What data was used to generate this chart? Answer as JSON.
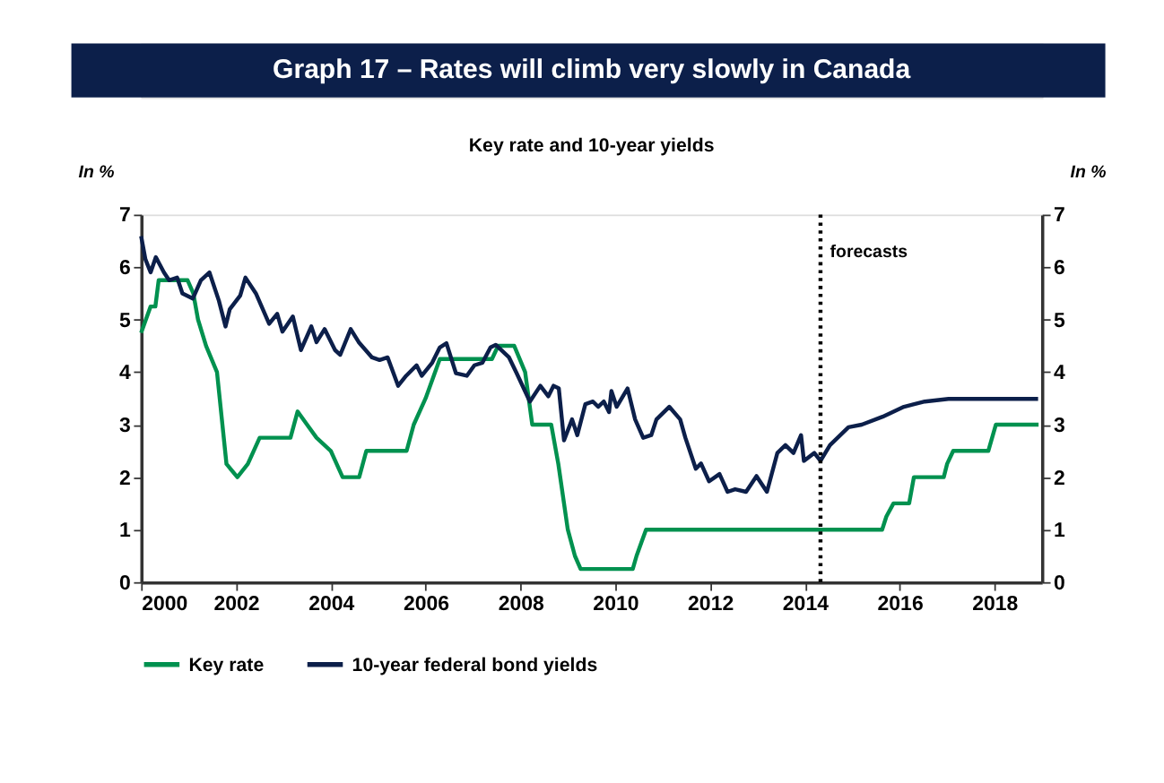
{
  "chart_data": {
    "type": "line",
    "title": "Graph 17 – Rates will climb very slowly in Canada",
    "subtitle": "Key rate and 10-year yields",
    "ylabel": "In %",
    "y2label": "In %",
    "xlim": [
      2000,
      2019
    ],
    "xticks": [
      2000,
      2002,
      2004,
      2006,
      2008,
      2010,
      2012,
      2014,
      2016,
      2018
    ],
    "ylim": [
      0,
      7
    ],
    "yticks": [
      0,
      1,
      2,
      3,
      4,
      5,
      6,
      7
    ],
    "y2lim": [
      0,
      7
    ],
    "y2ticks": [
      0,
      1,
      2,
      3,
      4,
      5,
      6,
      7
    ],
    "grid": false,
    "legend": "bottom",
    "line_style": "solid",
    "ref_lines": [
      {
        "axis": "x",
        "value": 2014.33,
        "label": "forecasts",
        "line_style": "dotted",
        "color": "#000000"
      }
    ],
    "series": [
      {
        "name": "Key rate",
        "color": "#00914f",
        "x": [
          2000.0,
          2000.2,
          2000.3,
          2000.37,
          2000.98,
          2001.1,
          2001.2,
          2001.37,
          2001.6,
          2001.8,
          2002.03,
          2002.25,
          2002.5,
          2003.15,
          2003.3,
          2003.5,
          2003.7,
          2004.0,
          2004.25,
          2004.6,
          2004.75,
          2005.6,
          2005.75,
          2006.0,
          2006.3,
          2007.4,
          2007.53,
          2007.87,
          2008.1,
          2008.25,
          2008.65,
          2008.8,
          2009.0,
          2009.15,
          2009.27,
          2010.37,
          2010.45,
          2010.55,
          2010.65,
          2015.63,
          2015.72,
          2015.87,
          2016.2,
          2016.3,
          2016.93,
          2017.0,
          2017.13,
          2017.87,
          2018.03,
          2018.93
        ],
        "values": [
          4.75,
          5.25,
          5.25,
          5.75,
          5.75,
          5.5,
          5.0,
          4.5,
          4.0,
          2.25,
          2.0,
          2.25,
          2.75,
          2.75,
          3.25,
          3.0,
          2.75,
          2.5,
          2.0,
          2.0,
          2.5,
          2.5,
          3.0,
          3.5,
          4.25,
          4.25,
          4.5,
          4.5,
          4.0,
          3.0,
          3.0,
          2.25,
          1.0,
          0.5,
          0.25,
          0.25,
          0.5,
          0.75,
          1.0,
          1.0,
          1.25,
          1.5,
          1.5,
          2.0,
          2.0,
          2.25,
          2.5,
          2.5,
          3.0,
          3.0
        ]
      },
      {
        "name": "10-year federal bond yields",
        "color": "#0c1f4a",
        "x": [
          2000.0,
          2000.09,
          2000.2,
          2000.31,
          2000.48,
          2000.59,
          2000.76,
          2000.87,
          2001.09,
          2001.26,
          2001.44,
          2001.64,
          2001.78,
          2001.87,
          2002.09,
          2002.2,
          2002.42,
          2002.7,
          2002.87,
          2002.98,
          2003.2,
          2003.37,
          2003.59,
          2003.7,
          2003.87,
          2004.09,
          2004.2,
          2004.42,
          2004.59,
          2004.87,
          2005.03,
          2005.2,
          2005.42,
          2005.59,
          2005.81,
          2005.92,
          2006.14,
          2006.3,
          2006.44,
          2006.64,
          2006.87,
          2007.03,
          2007.2,
          2007.37,
          2007.48,
          2007.76,
          2007.92,
          2008.2,
          2008.42,
          2008.59,
          2008.7,
          2008.81,
          2008.92,
          2009.09,
          2009.2,
          2009.37,
          2009.53,
          2009.64,
          2009.76,
          2009.87,
          2009.92,
          2010.03,
          2010.26,
          2010.42,
          2010.59,
          2010.76,
          2010.87,
          2011.14,
          2011.37,
          2011.48,
          2011.7,
          2011.81,
          2011.98,
          2012.2,
          2012.37,
          2012.53,
          2012.76,
          2012.98,
          2013.2,
          2013.42,
          2013.59,
          2013.76,
          2013.92,
          2013.98,
          2014.2,
          2014.33,
          2014.53,
          2014.92,
          2015.2,
          2015.64,
          2016.09,
          2016.53,
          2017.03,
          2018.92
        ],
        "values": [
          6.59,
          6.15,
          5.9,
          6.19,
          5.9,
          5.75,
          5.8,
          5.5,
          5.4,
          5.75,
          5.9,
          5.36,
          4.87,
          5.2,
          5.46,
          5.8,
          5.5,
          4.92,
          5.11,
          4.77,
          5.06,
          4.42,
          4.87,
          4.57,
          4.82,
          4.42,
          4.33,
          4.82,
          4.57,
          4.28,
          4.23,
          4.28,
          3.74,
          3.93,
          4.13,
          3.93,
          4.18,
          4.47,
          4.55,
          3.98,
          3.93,
          4.13,
          4.18,
          4.47,
          4.52,
          4.28,
          3.98,
          3.44,
          3.74,
          3.54,
          3.74,
          3.69,
          2.7,
          3.1,
          2.8,
          3.39,
          3.44,
          3.34,
          3.44,
          3.24,
          3.64,
          3.34,
          3.69,
          3.1,
          2.75,
          2.8,
          3.1,
          3.34,
          3.1,
          2.75,
          2.16,
          2.26,
          1.92,
          2.06,
          1.72,
          1.77,
          1.72,
          2.02,
          1.72,
          2.46,
          2.61,
          2.46,
          2.8,
          2.31,
          2.46,
          2.31,
          2.61,
          2.95,
          3.0,
          3.15,
          3.34,
          3.44,
          3.49,
          3.49
        ]
      }
    ]
  }
}
